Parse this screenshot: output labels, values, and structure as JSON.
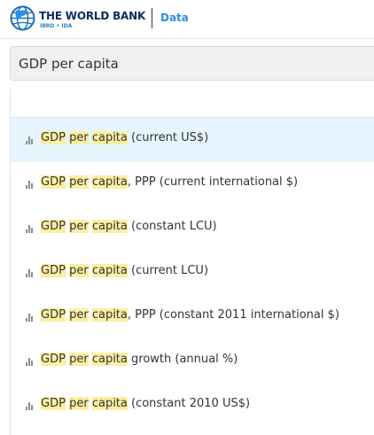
{
  "header": {
    "logo_title": "THE WORLD BANK",
    "logo_subtitle": "IBRD • IDA",
    "section_link": "Data"
  },
  "search": {
    "value": "GDP per capita",
    "placeholder": ""
  },
  "results": {
    "highlight_terms": [
      "GDP",
      "per",
      "capita"
    ],
    "items": [
      {
        "hl1": "GDP",
        "hl2": "per",
        "hl3": "capita",
        "suffix": " (current US$)",
        "active": true
      },
      {
        "hl1": "GDP",
        "hl2": "per",
        "hl3": "capita",
        "suffix": ", PPP (current international $)",
        "active": false
      },
      {
        "hl1": "GDP",
        "hl2": "per",
        "hl3": "capita",
        "suffix": " (constant LCU)",
        "active": false
      },
      {
        "hl1": "GDP",
        "hl2": "per",
        "hl3": "capita",
        "suffix": " (current LCU)",
        "active": false
      },
      {
        "hl1": "GDP",
        "hl2": "per",
        "hl3": "capita",
        "suffix": ", PPP (constant 2011 international $)",
        "active": false
      },
      {
        "hl1": "GDP",
        "hl2": "per",
        "hl3": "capita",
        "suffix": " growth (annual %)",
        "active": false
      },
      {
        "hl1": "GDP",
        "hl2": "per",
        "hl3": "capita",
        "suffix": " (constant 2010 US$)",
        "active": false
      }
    ],
    "icon": "bar-chart-icon"
  },
  "colors": {
    "brand_navy": "#0a2d5a",
    "brand_blue": "#2f8ee0",
    "highlight": "#fcefa1",
    "active_row": "#e6f4fd",
    "search_bg": "#eef0f2"
  }
}
